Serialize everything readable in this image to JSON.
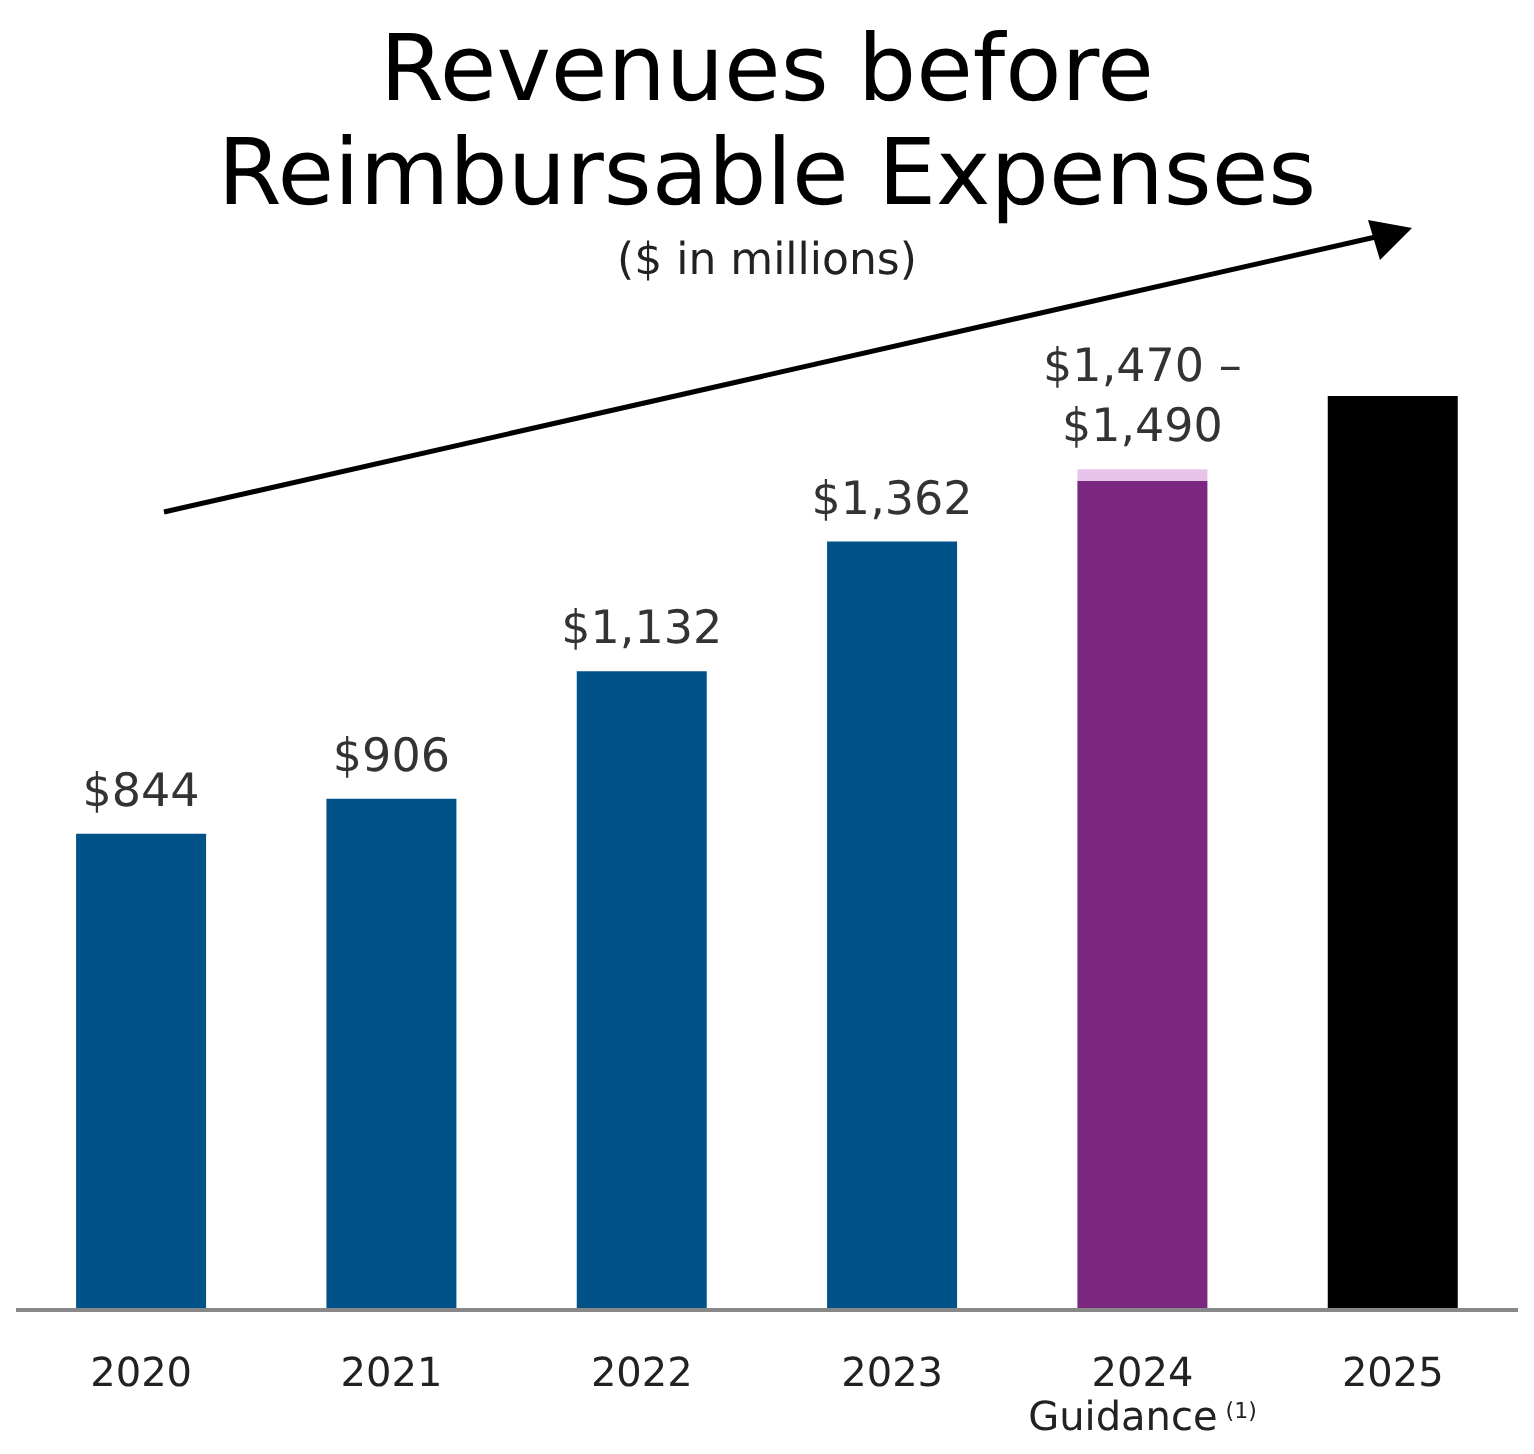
{
  "chart_data": {
    "type": "bar",
    "title": "Revenues before\nReimbursable Expenses",
    "subtitle": "($ in millions)",
    "categories": [
      "2020",
      "2021",
      "2022",
      "2023",
      "2024\nGuidance$^{(1)}$",
      "2025"
    ],
    "stacked": true,
    "legend": false,
    "grid": false,
    "series": [
      {
        "values": [
          844,
          906,
          1132,
          1362,
          1470,
          1620
        ],
        "colors": [
          "#005288",
          "#005288",
          "#005288",
          "#005288",
          "#7b267f",
          "#000000"
        ],
        "value_labels": [
          "$844",
          "$906",
          "$1,132",
          "$1,362",
          "$1,470 –\n$1,490",
          null
        ]
      },
      {
        "values": [
          null,
          null,
          null,
          null,
          20,
          null
        ],
        "colors": [
          null,
          null,
          null,
          null,
          "#e8c4ea",
          null
        ]
      }
    ]
  }
}
